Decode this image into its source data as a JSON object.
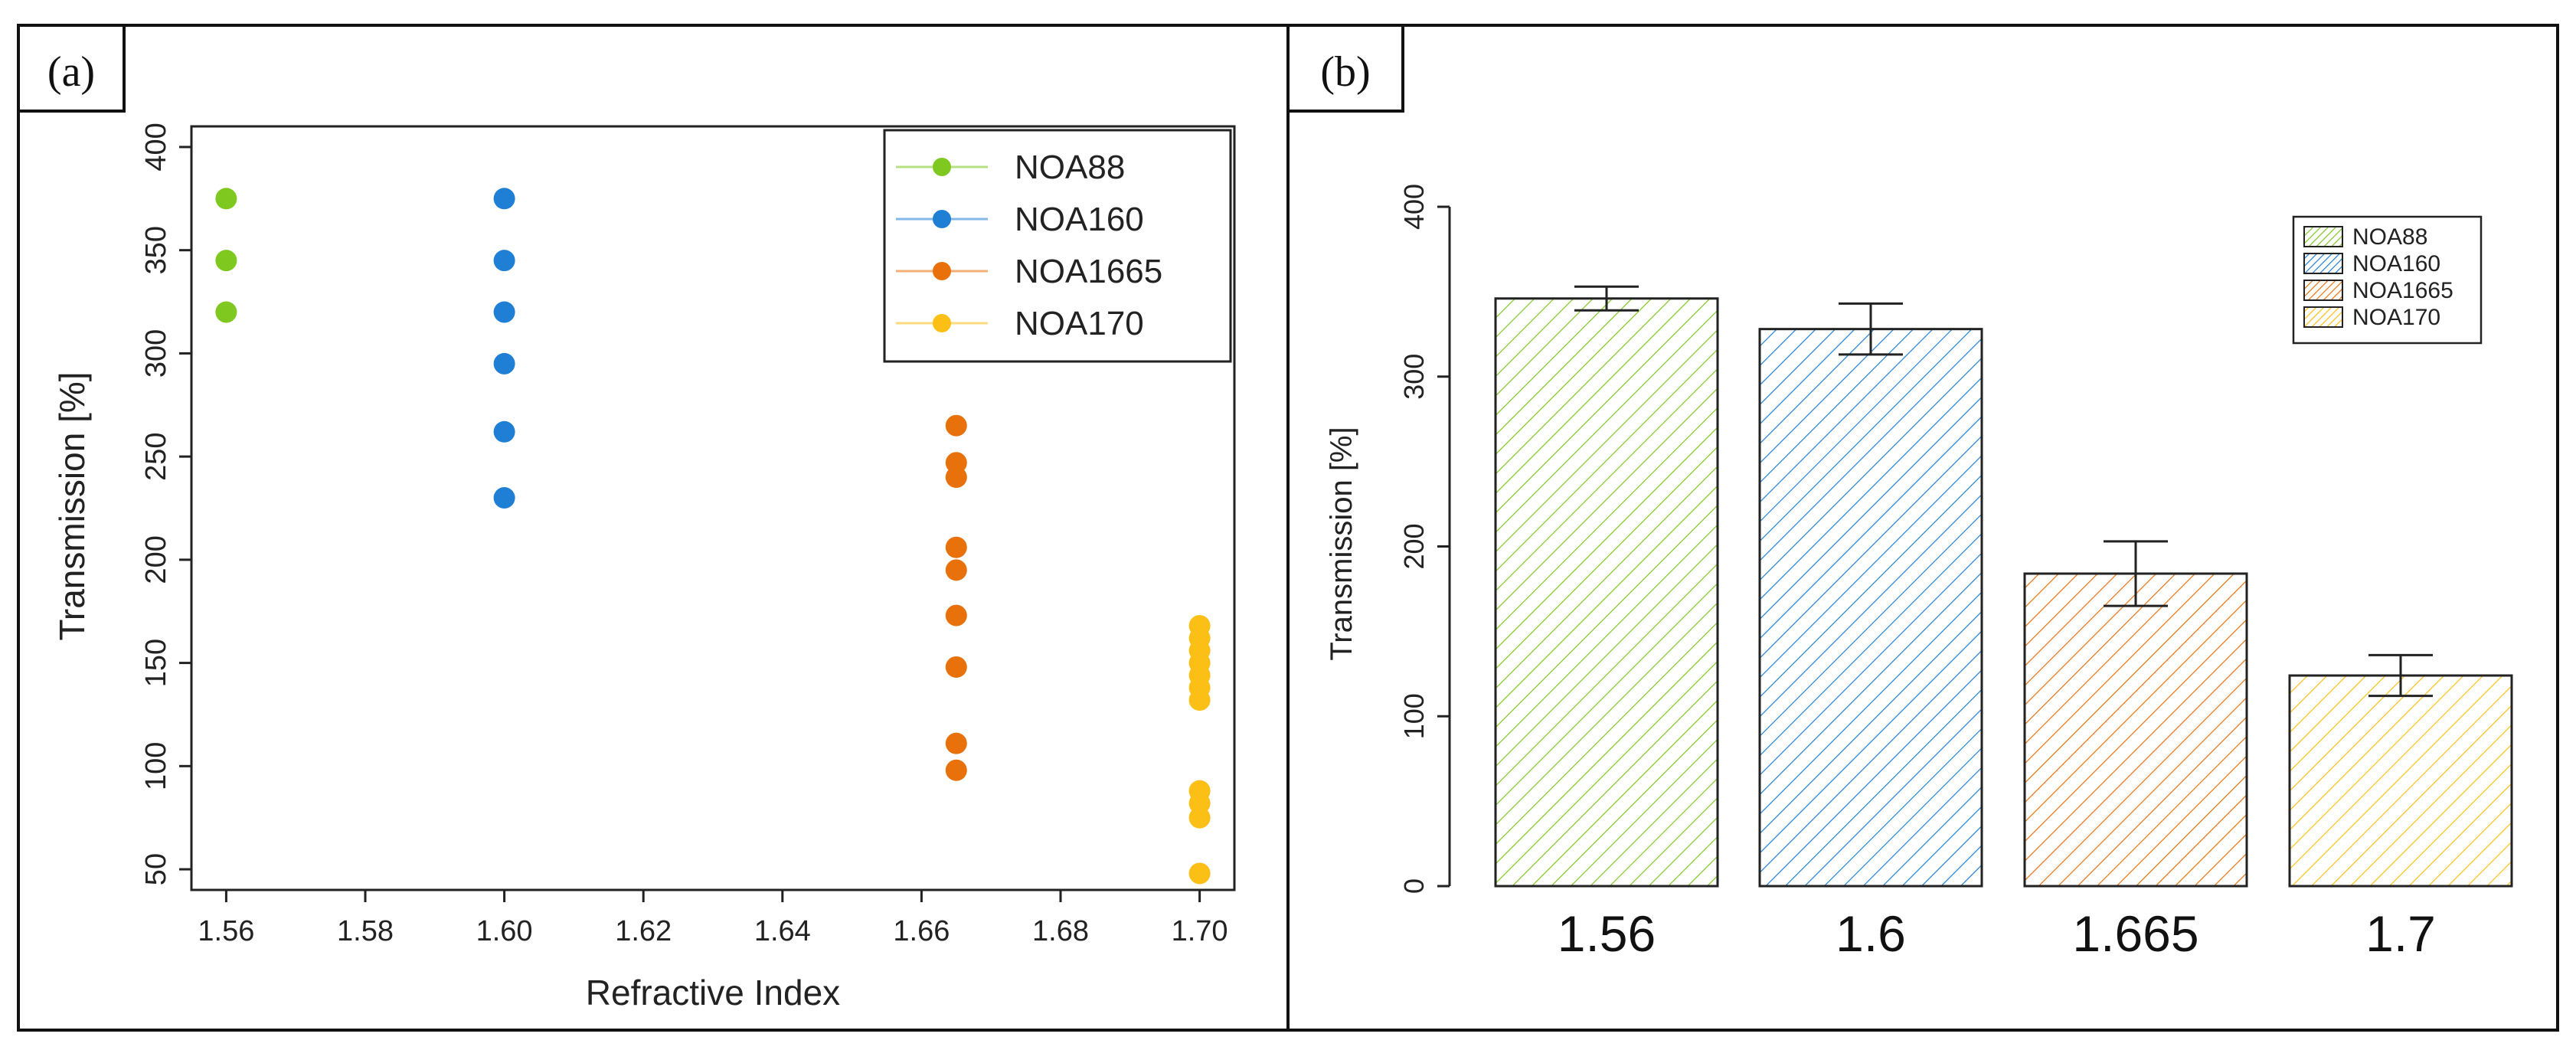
{
  "figure": {
    "panel_labels": [
      "(a)",
      "(b)"
    ]
  },
  "chart_data": [
    {
      "panel": "(a)",
      "type": "scatter",
      "xlabel": "Refractive Index",
      "ylabel": "Transmission [%]",
      "xlim": [
        1.555,
        1.705
      ],
      "ylim": [
        40,
        410
      ],
      "xticks": [
        "1.56",
        "1.58",
        "1.60",
        "1.62",
        "1.64",
        "1.66",
        "1.68",
        "1.70"
      ],
      "xtick_values": [
        1.56,
        1.58,
        1.6,
        1.62,
        1.64,
        1.66,
        1.68,
        1.7
      ],
      "yticks": [
        "50",
        "100",
        "150",
        "200",
        "250",
        "300",
        "350",
        "400"
      ],
      "ytick_values": [
        50,
        100,
        150,
        200,
        250,
        300,
        350,
        400
      ],
      "legend_position": "top-right",
      "series": [
        {
          "name": "NOA88",
          "color": "#7ec820",
          "points": [
            [
              1.56,
              375
            ],
            [
              1.56,
              345
            ],
            [
              1.56,
              320
            ]
          ]
        },
        {
          "name": "NOA160",
          "color": "#1f7fd4",
          "points": [
            [
              1.6,
              375
            ],
            [
              1.6,
              345
            ],
            [
              1.6,
              320
            ],
            [
              1.6,
              295
            ],
            [
              1.6,
              262
            ],
            [
              1.6,
              230
            ]
          ]
        },
        {
          "name": "NOA1665",
          "color": "#e8710c",
          "points": [
            [
              1.665,
              265
            ],
            [
              1.665,
              247
            ],
            [
              1.665,
              240
            ],
            [
              1.665,
              206
            ],
            [
              1.665,
              195
            ],
            [
              1.665,
              173
            ],
            [
              1.665,
              148
            ],
            [
              1.665,
              111
            ],
            [
              1.665,
              98
            ]
          ]
        },
        {
          "name": "NOA170",
          "color": "#fbbf15",
          "points": [
            [
              1.7,
              168
            ],
            [
              1.7,
              162
            ],
            [
              1.7,
              156
            ],
            [
              1.7,
              150
            ],
            [
              1.7,
              144
            ],
            [
              1.7,
              138
            ],
            [
              1.7,
              132
            ],
            [
              1.7,
              88
            ],
            [
              1.7,
              82
            ],
            [
              1.7,
              75
            ],
            [
              1.7,
              48
            ]
          ]
        }
      ]
    },
    {
      "panel": "(b)",
      "type": "bar",
      "ylabel": "Transmission [%]",
      "xlabel": "",
      "ylim": [
        0,
        400
      ],
      "yticks": [
        "0",
        "100",
        "200",
        "300",
        "400"
      ],
      "ytick_values": [
        0,
        100,
        200,
        300,
        400
      ],
      "categories": [
        "1.56",
        "1.6",
        "1.665",
        "1.7"
      ],
      "values": [
        346,
        328,
        184,
        124
      ],
      "error": [
        7,
        15,
        19,
        12
      ],
      "legend_position": "top-right",
      "series": [
        {
          "name": "NOA88",
          "color": "#7ec820",
          "fill": "#b5e07a"
        },
        {
          "name": "NOA160",
          "color": "#1f7fd4",
          "fill": "#7fbdf0"
        },
        {
          "name": "NOA1665",
          "color": "#e8710c",
          "fill": "#f4aa70"
        },
        {
          "name": "NOA170",
          "color": "#fbbf15",
          "fill": "#fdd97a"
        }
      ]
    }
  ]
}
